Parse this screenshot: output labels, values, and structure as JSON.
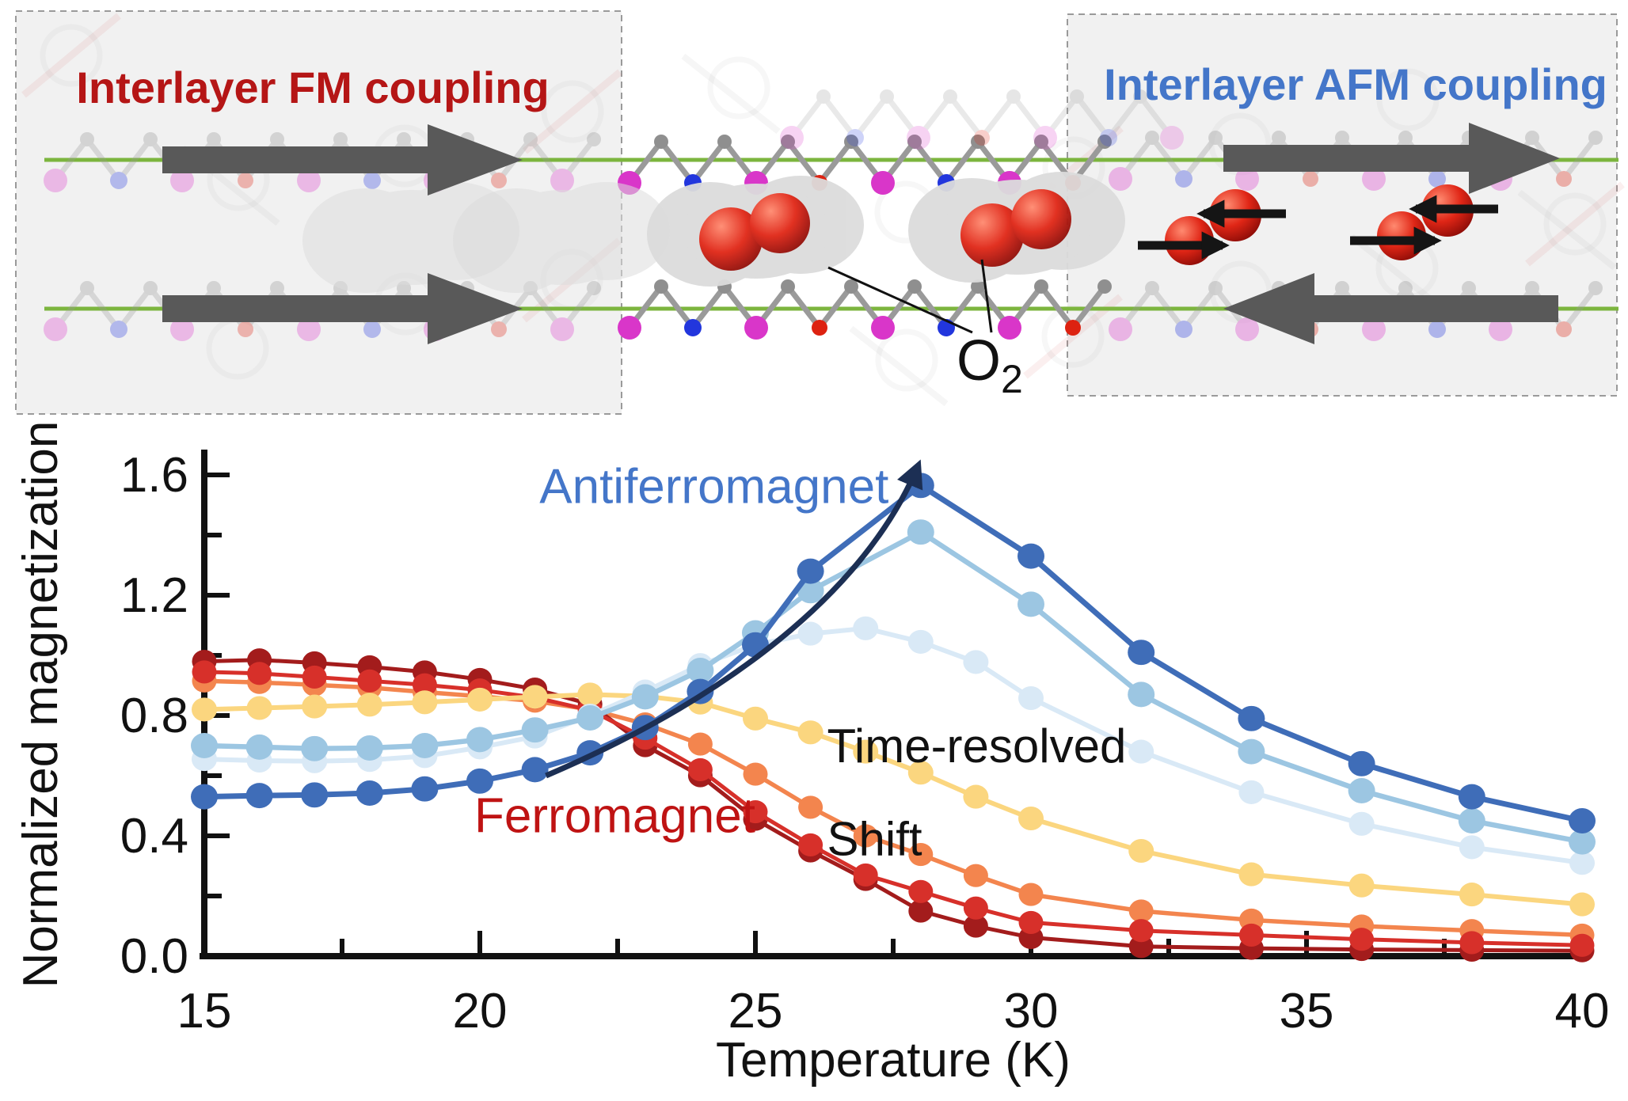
{
  "top_panel": {
    "fm_label": "Interlayer FM coupling",
    "afm_label": "Interlayer AFM coupling",
    "o2_label": {
      "main": "O",
      "sub": "2"
    },
    "colors": {
      "fm_text": "#b51616",
      "afm_text": "#4476c9",
      "green_line": "#7cb53e",
      "arrow_gray": "#595959",
      "box_bg": "#f1f1f1",
      "box_border": "#9a9a9a",
      "blob_gray": "#dcdcdc",
      "o2_red_hi": "#ff8a70",
      "o2_red_mid": "#e02616",
      "o2_red_dark": "#8f0d08",
      "atom_magenta": "#d936c9",
      "atom_blue": "#2236dd",
      "atom_gray": "#8f8f8f",
      "atom_red": "#dd2211",
      "spin_arrow_black": "#151515"
    }
  },
  "chart_data": {
    "type": "line",
    "title": "",
    "xlabel": "Temperature (K)",
    "ylabel": "Normalized magnetization",
    "xlim": [
      15,
      40
    ],
    "ylim": [
      0.0,
      1.6
    ],
    "grid": false,
    "legend_position": "none",
    "x_major_ticks": [
      15,
      20,
      25,
      30,
      35,
      40
    ],
    "x_major_tick_labels": [
      "15",
      "20",
      "25",
      "30",
      "35",
      "40"
    ],
    "x_minor_ticks": [
      17.5,
      22.5,
      27.5,
      32.5,
      37.5
    ],
    "y_major_ticks": [
      0.0,
      0.4,
      0.8,
      1.2,
      1.6
    ],
    "y_major_tick_labels": [
      "0.0",
      "0.4",
      "0.8",
      "1.2",
      "1.6"
    ],
    "y_minor_ticks": [
      0.2,
      0.6,
      1.0,
      1.4
    ],
    "axis_color": "#111111",
    "series": [
      {
        "id": "ferromagnet-orange",
        "name": "Ferromagnet (orange)",
        "color": "#f3854e",
        "line_width": 5.5,
        "marker_r": 15.5,
        "x": [
          15,
          16,
          17,
          18,
          19,
          20,
          21,
          22,
          23,
          24,
          25,
          26,
          27,
          28,
          29,
          30,
          32,
          34,
          36,
          38,
          40
        ],
        "y": [
          0.915,
          0.91,
          0.902,
          0.893,
          0.878,
          0.864,
          0.848,
          0.82,
          0.772,
          0.705,
          0.605,
          0.495,
          0.4,
          0.338,
          0.268,
          0.205,
          0.15,
          0.12,
          0.1,
          0.085,
          0.07
        ]
      },
      {
        "id": "ferromagnet-dark-red",
        "name": "Ferromagnet (dark red)",
        "color": "#a31c1c",
        "line_width": 5,
        "marker_r": 15.5,
        "x": [
          15,
          16,
          17,
          18,
          19,
          20,
          21,
          22,
          23,
          24,
          25,
          26,
          27,
          28,
          29,
          30,
          32,
          34,
          36,
          38,
          40
        ],
        "y": [
          0.98,
          0.985,
          0.975,
          0.962,
          0.945,
          0.92,
          0.888,
          0.838,
          0.7,
          0.6,
          0.455,
          0.35,
          0.255,
          0.15,
          0.1,
          0.062,
          0.032,
          0.026,
          0.022,
          0.02,
          0.018
        ]
      },
      {
        "id": "ferromagnet-red",
        "name": "Ferromagnet (red)",
        "color": "#d7302a",
        "line_width": 5,
        "marker_r": 15.5,
        "x": [
          15,
          16,
          17,
          18,
          19,
          20,
          21,
          22,
          23,
          24,
          25,
          26,
          27,
          28,
          29,
          30,
          32,
          34,
          36,
          38,
          40
        ],
        "y": [
          0.945,
          0.94,
          0.928,
          0.915,
          0.902,
          0.885,
          0.86,
          0.818,
          0.725,
          0.62,
          0.48,
          0.37,
          0.27,
          0.215,
          0.16,
          0.112,
          0.085,
          0.07,
          0.056,
          0.045,
          0.036
        ]
      },
      {
        "id": "ferromagnet-yellow",
        "name": "Ferromagnet (yellow)",
        "color": "#fbd67f",
        "line_width": 6,
        "marker_r": 16,
        "x": [
          15,
          16,
          17,
          18,
          19,
          20,
          21,
          22,
          23,
          24,
          25,
          26,
          27,
          28,
          29,
          30,
          32,
          34,
          36,
          38,
          40
        ],
        "y": [
          0.82,
          0.825,
          0.83,
          0.836,
          0.844,
          0.853,
          0.862,
          0.87,
          0.864,
          0.843,
          0.79,
          0.744,
          0.68,
          0.61,
          0.53,
          0.458,
          0.35,
          0.272,
          0.235,
          0.205,
          0.172
        ]
      },
      {
        "id": "antiferromagnet-pale-blue",
        "name": "Antiferromagnet (pale blue)",
        "color": "#d9e9f6",
        "line_width": 6,
        "marker_r": 16,
        "x": [
          15,
          16,
          17,
          18,
          19,
          20,
          21,
          22,
          23,
          24,
          25,
          26,
          27,
          28,
          29,
          30,
          32,
          34,
          36,
          38,
          40
        ],
        "y": [
          0.655,
          0.65,
          0.648,
          0.652,
          0.665,
          0.694,
          0.73,
          0.8,
          0.88,
          0.968,
          1.035,
          1.072,
          1.09,
          1.045,
          0.978,
          0.858,
          0.68,
          0.545,
          0.44,
          0.362,
          0.31
        ]
      },
      {
        "id": "antiferromagnet-light-blue",
        "name": "Antiferromagnet (light blue)",
        "color": "#9cc6e2",
        "line_width": 6.5,
        "marker_r": 17,
        "x": [
          15,
          16,
          17,
          18,
          19,
          20,
          21,
          22,
          23,
          24,
          25,
          26,
          28,
          30,
          32,
          34,
          36,
          38,
          40
        ],
        "y": [
          0.7,
          0.695,
          0.69,
          0.692,
          0.7,
          0.72,
          0.752,
          0.792,
          0.862,
          0.95,
          1.075,
          1.215,
          1.41,
          1.17,
          0.87,
          0.68,
          0.55,
          0.45,
          0.38
        ]
      },
      {
        "id": "antiferromagnet-dark-blue",
        "name": "Antiferromagnet (dark blue)",
        "color": "#3f6db8",
        "line_width": 7,
        "marker_r": 17,
        "x": [
          15,
          16,
          17,
          18,
          19,
          20,
          21,
          22,
          23,
          24,
          25,
          26,
          28,
          30,
          32,
          34,
          36,
          38,
          40
        ],
        "y": [
          0.53,
          0.534,
          0.536,
          0.542,
          0.556,
          0.582,
          0.62,
          0.676,
          0.76,
          0.88,
          1.035,
          1.28,
          1.565,
          1.33,
          1.01,
          0.79,
          0.64,
          0.53,
          0.45
        ]
      }
    ],
    "annotations": [
      {
        "id": "antiferromagnet-label",
        "text": "Antiferromagnet",
        "color": "#4476c9",
        "t": 24.25,
        "v": 1.565,
        "anchor": "middle",
        "size": 62
      },
      {
        "id": "ferromagnet-label",
        "text": "Ferromagnet",
        "color": "#bf1313",
        "t": 22.45,
        "v": 0.47,
        "anchor": "middle",
        "size": 62
      },
      {
        "id": "time-resolved-shift-label",
        "lines": [
          "Time-resolved",
          "Shift"
        ],
        "color": "#111111",
        "t": 26.3,
        "v": 0.645,
        "anchor": "start",
        "size": 60,
        "line_gap_v": 0.31
      }
    ],
    "shift_arrow": {
      "from_t": 21.2,
      "from_v": 0.6,
      "to_t": 27.95,
      "to_v": 1.63,
      "color": "#1c2f54",
      "width": 7
    }
  }
}
